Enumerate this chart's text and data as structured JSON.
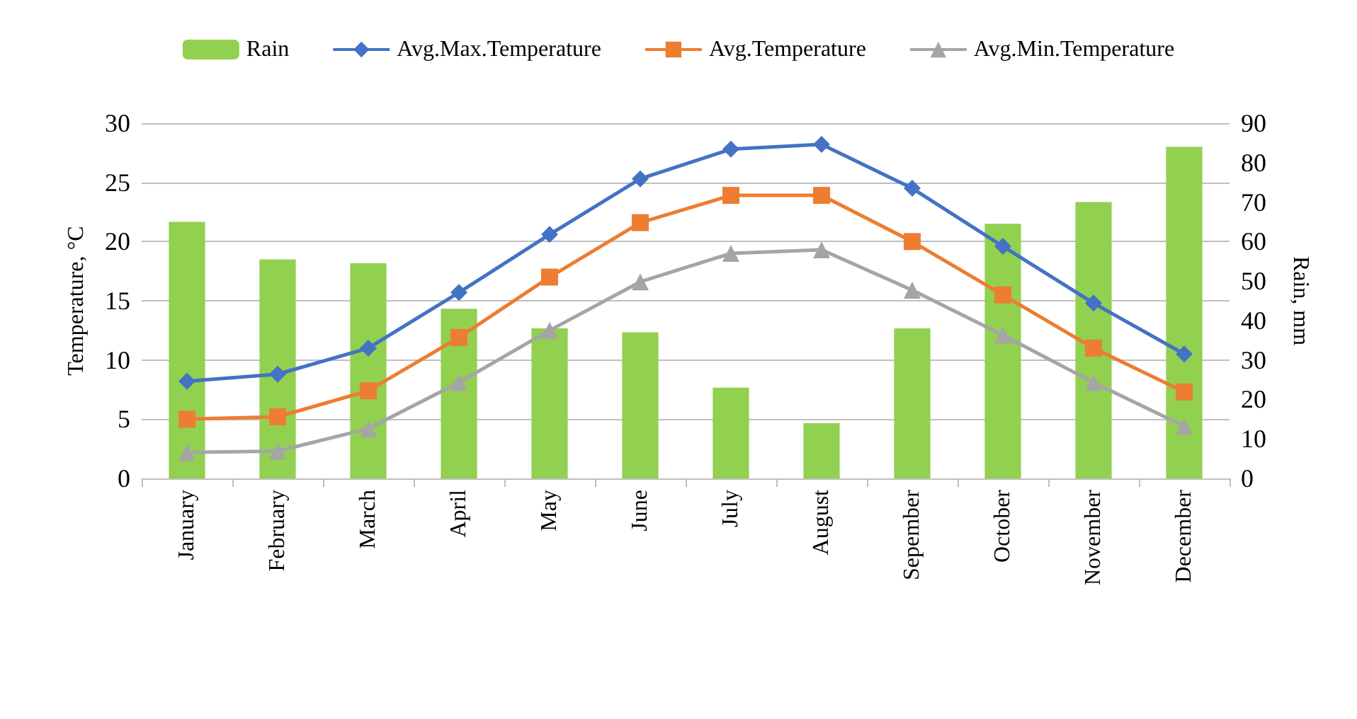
{
  "chart_data": {
    "type": "line",
    "ylabel": "Temperature, °C",
    "y2label": "Rain, mm",
    "categories": [
      "January",
      "February",
      "March",
      "April",
      "May",
      "June",
      "July",
      "August",
      "Sepember",
      "October",
      "November",
      "December"
    ],
    "ylim": [
      0,
      30
    ],
    "yticks": [
      0,
      5,
      10,
      15,
      20,
      25,
      30
    ],
    "y2lim": [
      0,
      90
    ],
    "y2ticks": [
      0,
      10,
      20,
      30,
      40,
      50,
      60,
      70,
      80,
      90
    ],
    "grid": "y",
    "legend": "top",
    "series": [
      {
        "name": "Rain",
        "type": "bar",
        "axis": "y2",
        "color": "#92d050",
        "values": [
          65,
          55.5,
          54.5,
          43,
          38,
          37,
          23,
          14,
          38,
          64.5,
          70,
          84
        ]
      },
      {
        "name": "Avg.Max.Temperature",
        "color": "#4472c4",
        "marker": "diamond",
        "values": [
          8.2,
          8.8,
          11,
          15.7,
          20.6,
          25.3,
          27.8,
          28.2,
          24.5,
          19.6,
          14.8,
          10.5
        ]
      },
      {
        "name": "Avg.Temperature",
        "color": "#ed7d31",
        "marker": "square",
        "values": [
          5,
          5.2,
          7.4,
          11.9,
          17,
          21.6,
          23.9,
          23.9,
          20,
          15.5,
          11,
          7.3
        ]
      },
      {
        "name": "Avg.Min.Temperature",
        "color": "#a5a5a5",
        "marker": "triangle",
        "values": [
          2.2,
          2.3,
          4.2,
          8.1,
          12.5,
          16.6,
          19,
          19.3,
          15.9,
          12.1,
          8.1,
          4.4
        ]
      }
    ]
  }
}
